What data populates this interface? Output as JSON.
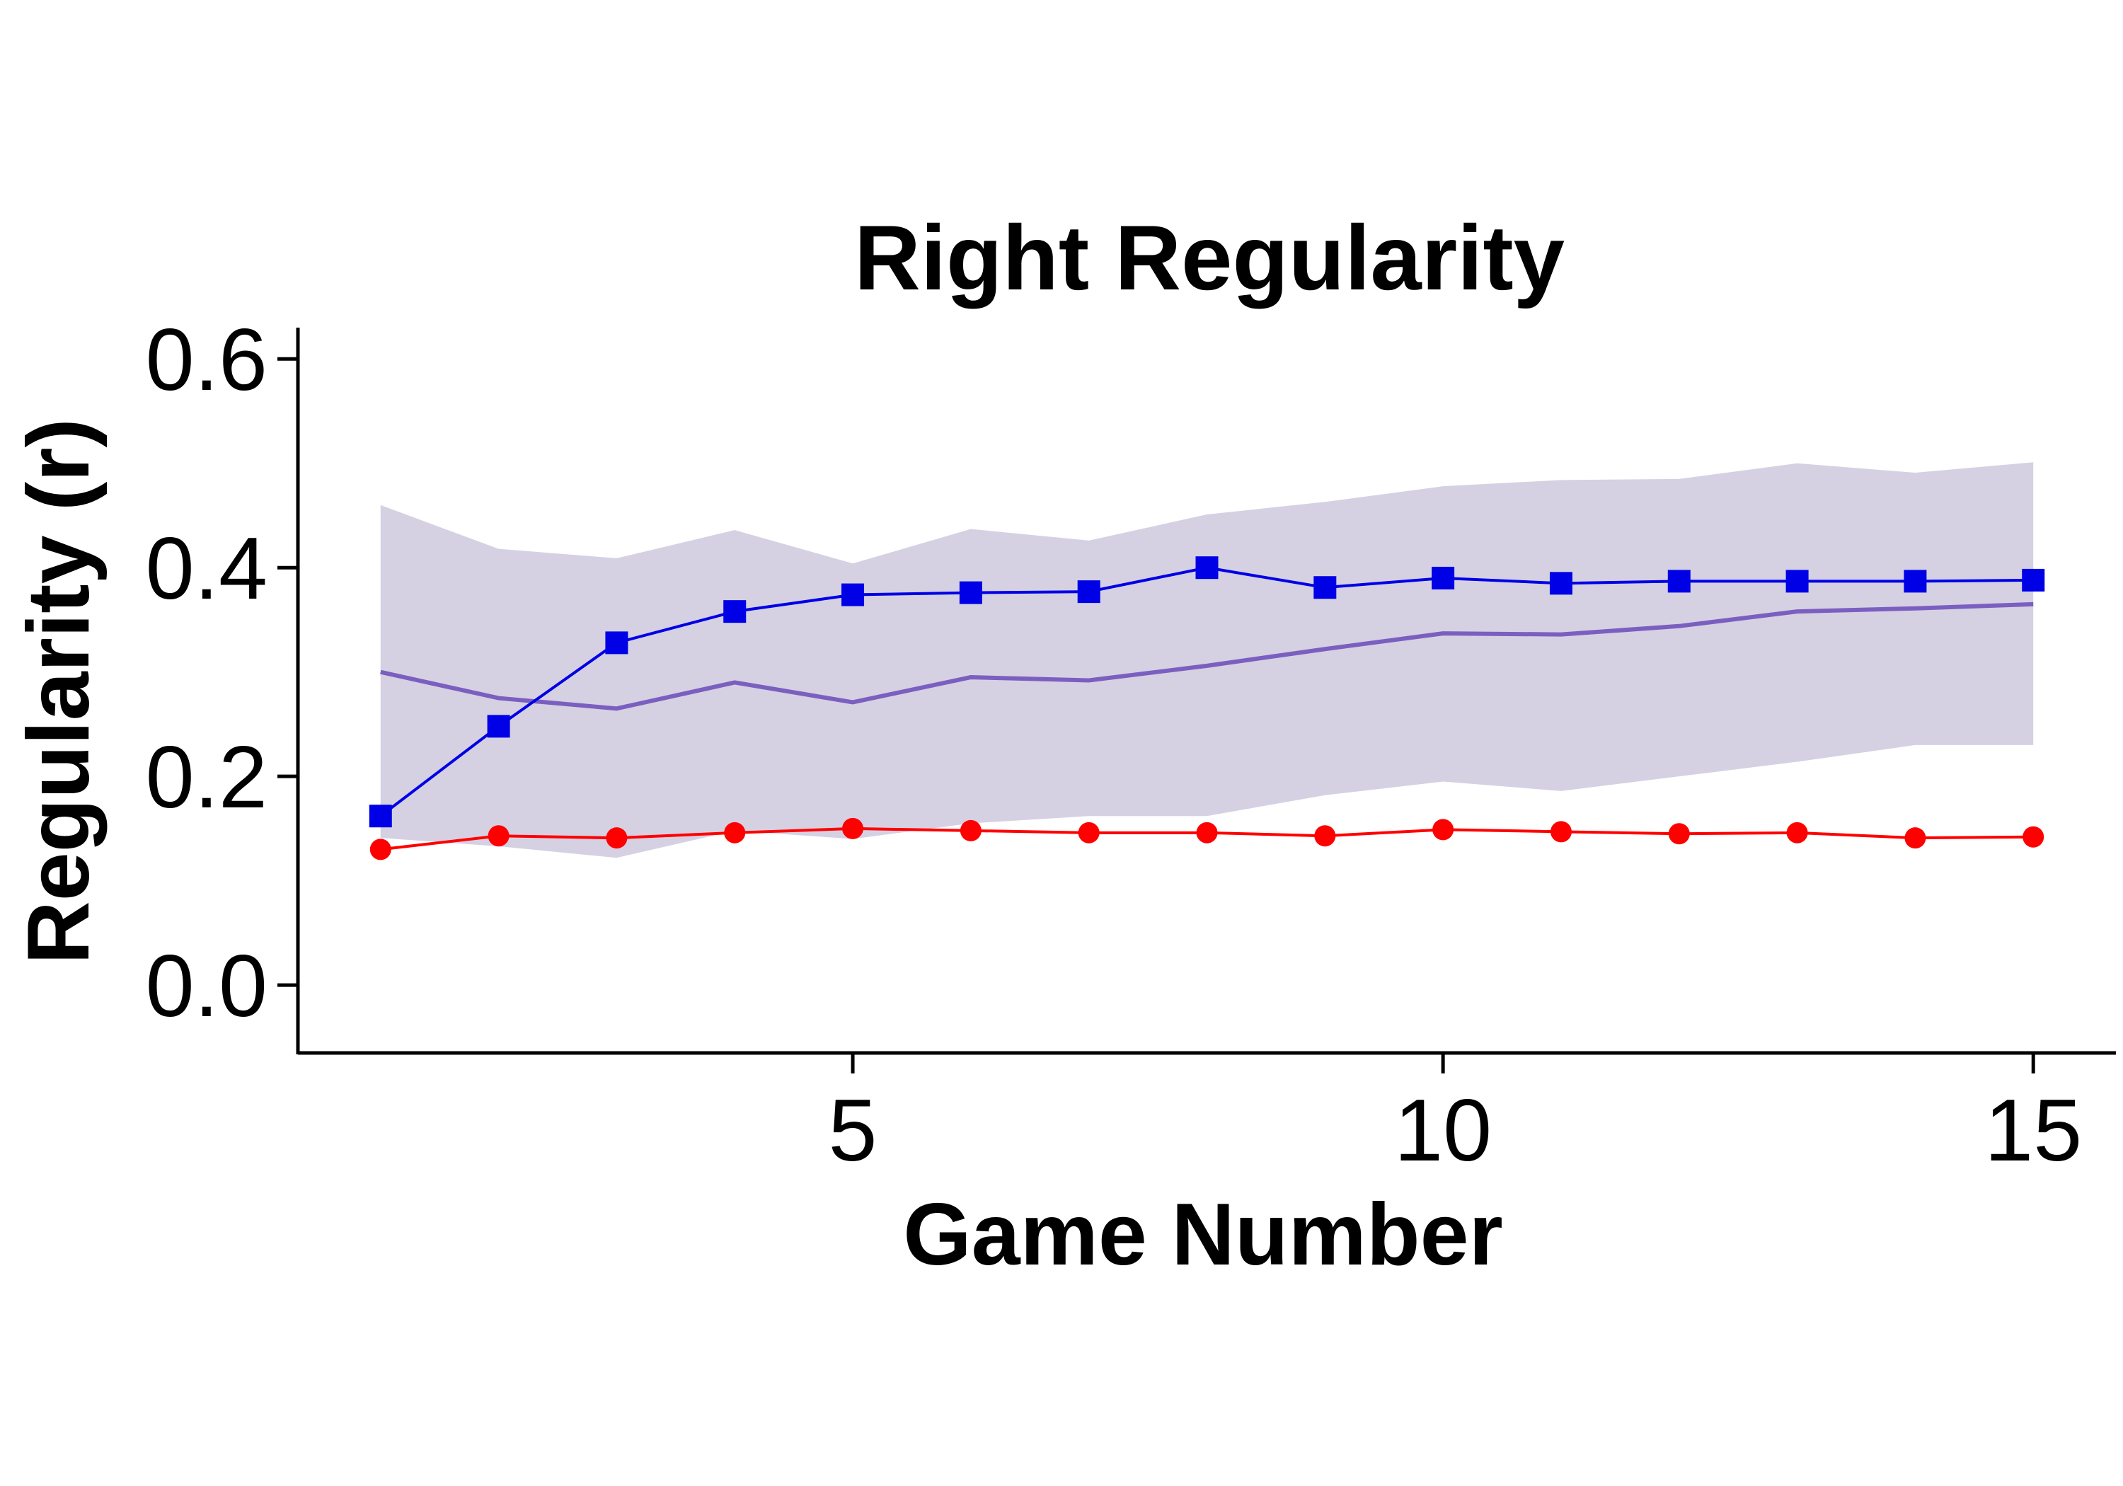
{
  "chart_data": {
    "type": "line",
    "title": "Right Regularity",
    "xlabel": "Game Number",
    "ylabel": "Regularity (r)",
    "xlim": [
      0.3,
      15.7
    ],
    "ylim": [
      -0.065,
      0.63
    ],
    "x_ticks": [
      5,
      10,
      15
    ],
    "x_tick_labels": [
      "5",
      "10",
      "15"
    ],
    "y_ticks": [
      0.0,
      0.2,
      0.4,
      0.6
    ],
    "y_tick_labels": [
      "0.0",
      "0.2",
      "0.4",
      "0.6"
    ],
    "grid": false,
    "legend": "none",
    "x": [
      1,
      2,
      3,
      4,
      5,
      6,
      7,
      8,
      9,
      10,
      11,
      12,
      13,
      14,
      15
    ],
    "band": {
      "color": "#d5d1e3",
      "upper": [
        0.46,
        0.418,
        0.409,
        0.436,
        0.404,
        0.437,
        0.426,
        0.451,
        0.463,
        0.478,
        0.484,
        0.485,
        0.5,
        0.491,
        0.501
      ],
      "lower": [
        0.141,
        0.133,
        0.122,
        0.148,
        0.14,
        0.155,
        0.162,
        0.162,
        0.182,
        0.195,
        0.186,
        0.2,
        0.214,
        0.23,
        0.23
      ]
    },
    "series": [
      {
        "color": "#7b5fc0",
        "marker": "none",
        "values": [
          0.3,
          0.275,
          0.265,
          0.29,
          0.271,
          0.295,
          0.292,
          0.306,
          0.322,
          0.337,
          0.336,
          0.344,
          0.358,
          0.361,
          0.365
        ]
      },
      {
        "color": "#0000e6",
        "marker": "square",
        "values": [
          0.162,
          0.248,
          0.328,
          0.358,
          0.374,
          0.376,
          0.377,
          0.4,
          0.381,
          0.39,
          0.385,
          0.387,
          0.387,
          0.387,
          0.388
        ]
      },
      {
        "color": "#ff0000",
        "marker": "circle",
        "values": [
          0.13,
          0.143,
          0.141,
          0.146,
          0.15,
          0.148,
          0.146,
          0.146,
          0.143,
          0.149,
          0.147,
          0.145,
          0.146,
          0.141,
          0.142
        ]
      }
    ]
  }
}
